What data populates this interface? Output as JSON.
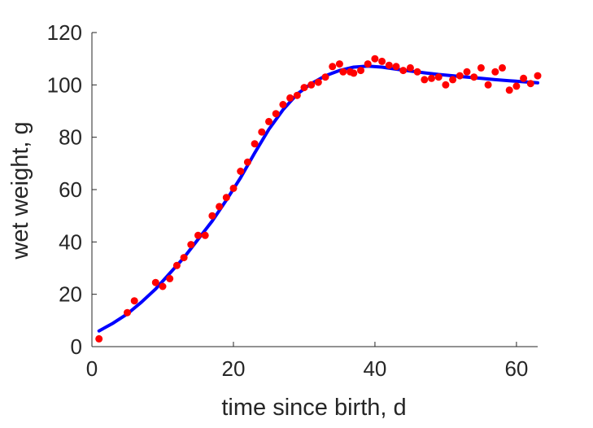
{
  "chart_data": {
    "type": "scatter",
    "title": "",
    "xlabel": "time since birth, d",
    "ylabel": "wet weight, g",
    "xlim": [
      0,
      63
    ],
    "ylim": [
      0,
      120
    ],
    "xticks": [
      0,
      20,
      40,
      60
    ],
    "yticks": [
      0,
      20,
      40,
      60,
      80,
      100,
      120
    ],
    "xtick_labels": [
      "0",
      "20",
      "40",
      "60"
    ],
    "ytick_labels": [
      "0",
      "20",
      "40",
      "60",
      "80",
      "100",
      "120"
    ],
    "grid": false,
    "legend": "none",
    "colors": {
      "data_points": "#ff0000",
      "fit_line": "#0000ff",
      "axis": "#262626"
    },
    "series": [
      {
        "kind": "scatter",
        "points": [
          [
            1,
            3
          ],
          [
            5,
            13
          ],
          [
            6,
            17.5
          ],
          [
            9,
            24.5
          ],
          [
            10,
            23
          ],
          [
            11,
            26
          ],
          [
            12,
            31
          ],
          [
            13,
            34
          ],
          [
            14,
            39
          ],
          [
            15,
            42.5
          ],
          [
            16,
            42.5
          ],
          [
            17,
            50
          ],
          [
            18,
            53.5
          ],
          [
            19,
            57
          ],
          [
            20,
            60.5
          ],
          [
            21,
            67
          ],
          [
            22,
            70.5
          ],
          [
            23,
            77.5
          ],
          [
            24,
            82
          ],
          [
            25,
            86
          ],
          [
            26,
            89
          ],
          [
            27,
            92.5
          ],
          [
            28,
            95
          ],
          [
            29,
            96
          ],
          [
            30,
            99
          ],
          [
            31,
            100
          ],
          [
            32,
            101
          ],
          [
            33,
            103
          ],
          [
            34,
            107
          ],
          [
            35,
            108
          ],
          [
            35.5,
            105
          ],
          [
            36.5,
            105
          ],
          [
            37,
            104.5
          ],
          [
            38,
            105.5
          ],
          [
            39,
            108
          ],
          [
            40,
            110
          ],
          [
            41,
            109
          ],
          [
            42,
            107.5
          ],
          [
            43,
            107
          ],
          [
            44,
            105.5
          ],
          [
            45,
            106.5
          ],
          [
            46,
            105
          ],
          [
            47,
            102
          ],
          [
            48,
            102.5
          ],
          [
            49,
            103
          ],
          [
            50,
            100
          ],
          [
            51,
            102
          ],
          [
            52,
            103.5
          ],
          [
            53,
            105
          ],
          [
            54,
            103
          ],
          [
            55,
            106.5
          ],
          [
            56,
            100
          ],
          [
            57,
            105
          ],
          [
            58,
            106.5
          ],
          [
            59,
            98
          ],
          [
            60,
            99.5
          ],
          [
            61,
            102.5
          ],
          [
            62,
            100.5
          ],
          [
            63,
            103.5
          ]
        ]
      },
      {
        "kind": "line",
        "points": [
          [
            1,
            6
          ],
          [
            3,
            9
          ],
          [
            5,
            12.5
          ],
          [
            7,
            17
          ],
          [
            9,
            22
          ],
          [
            11,
            28
          ],
          [
            13,
            34
          ],
          [
            15,
            41
          ],
          [
            17,
            48
          ],
          [
            19,
            56
          ],
          [
            21,
            64.5
          ],
          [
            23,
            74
          ],
          [
            25,
            83
          ],
          [
            27,
            90.5
          ],
          [
            29,
            96.5
          ],
          [
            31,
            100.5
          ],
          [
            33,
            103.5
          ],
          [
            35,
            105.5
          ],
          [
            37,
            106.8
          ],
          [
            39,
            107.2
          ],
          [
            41,
            106.8
          ],
          [
            43,
            106
          ],
          [
            45,
            105.3
          ],
          [
            47,
            104.6
          ],
          [
            49,
            104
          ],
          [
            51,
            103.5
          ],
          [
            53,
            103
          ],
          [
            55,
            102.5
          ],
          [
            57,
            102
          ],
          [
            59,
            101.6
          ],
          [
            61,
            101.2
          ],
          [
            63,
            100.8
          ]
        ]
      }
    ]
  }
}
